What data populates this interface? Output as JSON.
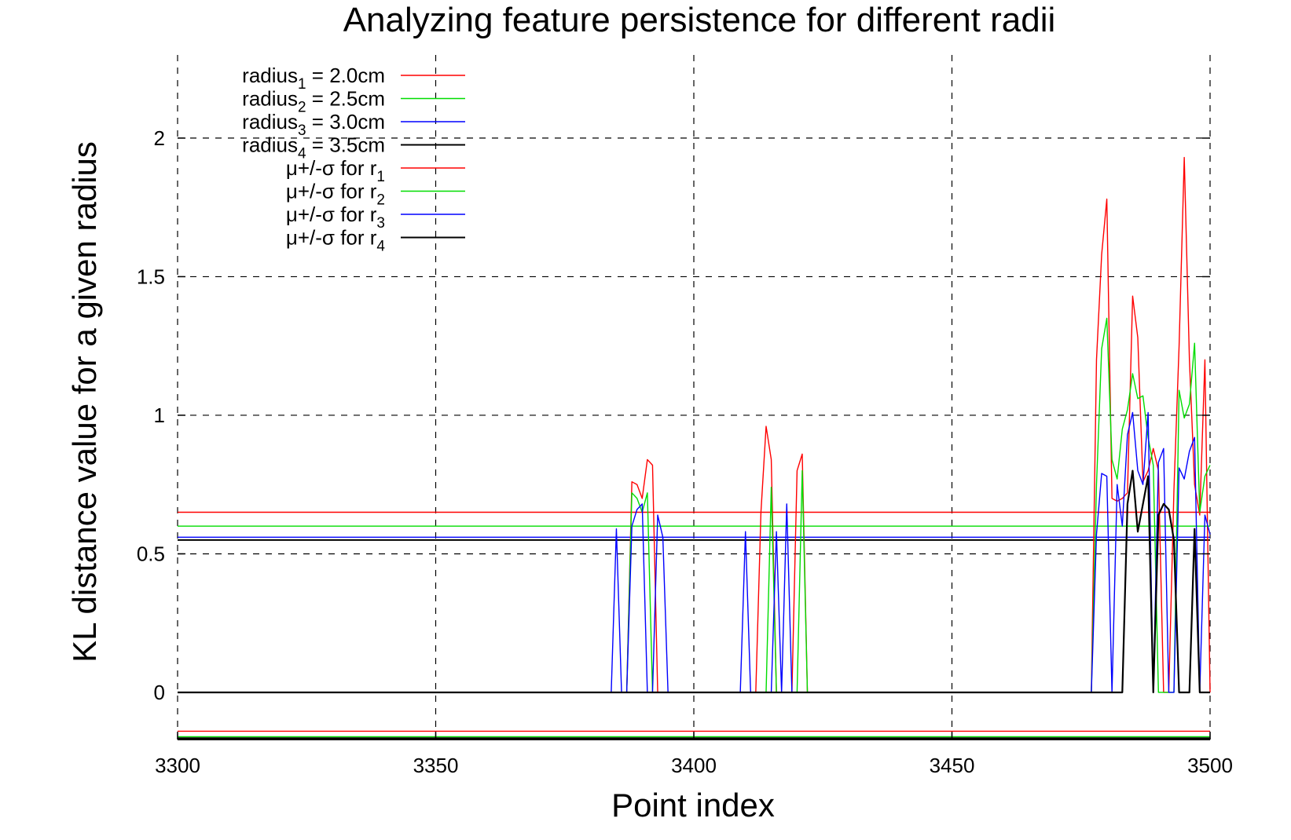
{
  "chart_data": {
    "type": "line",
    "title": "Analyzing feature persistence for different radii",
    "xlabel": "Point index",
    "ylabel": "KL distance value for a given radius",
    "xlim": [
      3300,
      3500
    ],
    "ylim": [
      -0.17,
      2.3
    ],
    "x_ticks": [
      3300,
      3350,
      3400,
      3450,
      3500
    ],
    "y_ticks": [
      0,
      0.5,
      1,
      1.5,
      2
    ],
    "x_tick_labels": [
      "3300",
      "3350",
      "3400",
      "3450",
      "3500"
    ],
    "y_tick_labels": [
      "0",
      "0.5",
      "1",
      "1.5",
      "2"
    ],
    "grid": true,
    "legend_position": "top-left",
    "legend": [
      {
        "prefix": "radius",
        "sub": "1",
        "suffix": " = 2.0cm",
        "color": "#ff0000"
      },
      {
        "prefix": "radius",
        "sub": "2",
        "suffix": " = 2.5cm",
        "color": "#00dd00"
      },
      {
        "prefix": "radius",
        "sub": "3",
        "suffix": " = 3.0cm",
        "color": "#0000ff"
      },
      {
        "prefix": "radius",
        "sub": "4",
        "suffix": " = 3.5cm",
        "color": "#000000"
      },
      {
        "prefix": "μ+/-σ for r",
        "sub": "1",
        "suffix": "",
        "color": "#ff0000"
      },
      {
        "prefix": "μ+/-σ for r",
        "sub": "2",
        "suffix": "",
        "color": "#00dd00"
      },
      {
        "prefix": "μ+/-σ for r",
        "sub": "3",
        "suffix": "",
        "color": "#0000ff"
      },
      {
        "prefix": "μ+/-σ for r",
        "sub": "4",
        "suffix": "",
        "color": "#000000"
      }
    ],
    "bands": [
      {
        "color": "#ff0000",
        "upper": 0.65,
        "lower": -0.14
      },
      {
        "color": "#00dd00",
        "upper": 0.6,
        "lower": -0.16
      },
      {
        "color": "#0000ff",
        "upper": 0.56,
        "lower": -0.165
      },
      {
        "color": "#000000",
        "upper": 0.55,
        "lower": -0.165
      }
    ],
    "series": [
      {
        "color": "#ff0000",
        "points": [
          [
            3300,
            0
          ],
          [
            3387,
            0
          ],
          [
            3388,
            0.76
          ],
          [
            3389,
            0.75
          ],
          [
            3390,
            0.7
          ],
          [
            3391,
            0.84
          ],
          [
            3392,
            0.82
          ],
          [
            3393,
            0
          ],
          [
            3412,
            0
          ],
          [
            3413,
            0.65
          ],
          [
            3414,
            0.96
          ],
          [
            3415,
            0.84
          ],
          [
            3416,
            0
          ],
          [
            3419,
            0
          ],
          [
            3420,
            0.8
          ],
          [
            3421,
            0.86
          ],
          [
            3422,
            0
          ],
          [
            3477,
            0
          ],
          [
            3478,
            1.2
          ],
          [
            3479,
            1.58
          ],
          [
            3480,
            1.78
          ],
          [
            3481,
            0.7
          ],
          [
            3482,
            0.69
          ],
          [
            3483,
            0.7
          ],
          [
            3484,
            0.72
          ],
          [
            3485,
            1.43
          ],
          [
            3486,
            1.28
          ],
          [
            3487,
            0.76
          ],
          [
            3488,
            0.8
          ],
          [
            3489,
            0.88
          ],
          [
            3490,
            0.8
          ],
          [
            3491,
            0
          ],
          [
            3492,
            0
          ],
          [
            3493,
            0.73
          ],
          [
            3494,
            1.25
          ],
          [
            3495,
            1.93
          ],
          [
            3496,
            1.2
          ],
          [
            3497,
            0.75
          ],
          [
            3498,
            0.64
          ],
          [
            3499,
            1.2
          ],
          [
            3500,
            0
          ]
        ]
      },
      {
        "color": "#00dd00",
        "points": [
          [
            3300,
            0
          ],
          [
            3387,
            0
          ],
          [
            3388,
            0.72
          ],
          [
            3389,
            0.7
          ],
          [
            3390,
            0.65
          ],
          [
            3391,
            0.72
          ],
          [
            3392,
            0
          ],
          [
            3414,
            0
          ],
          [
            3415,
            0.74
          ],
          [
            3416,
            0
          ],
          [
            3420,
            0
          ],
          [
            3421,
            0.8
          ],
          [
            3422,
            0
          ],
          [
            3477,
            0
          ],
          [
            3478,
            0.75
          ],
          [
            3479,
            1.24
          ],
          [
            3480,
            1.35
          ],
          [
            3481,
            0.84
          ],
          [
            3482,
            0.77
          ],
          [
            3483,
            0.95
          ],
          [
            3484,
            1.02
          ],
          [
            3485,
            1.15
          ],
          [
            3486,
            1.06
          ],
          [
            3487,
            1.07
          ],
          [
            3488,
            0.92
          ],
          [
            3489,
            0.82
          ],
          [
            3490,
            0
          ],
          [
            3493,
            0
          ],
          [
            3494,
            1.09
          ],
          [
            3495,
            0.99
          ],
          [
            3496,
            1.04
          ],
          [
            3497,
            1.26
          ],
          [
            3498,
            0.65
          ],
          [
            3499,
            0.78
          ],
          [
            3500,
            0.82
          ]
        ]
      },
      {
        "color": "#0000ff",
        "points": [
          [
            3300,
            0
          ],
          [
            3384,
            0
          ],
          [
            3385,
            0.59
          ],
          [
            3386,
            0
          ],
          [
            3387,
            0
          ],
          [
            3388,
            0.6
          ],
          [
            3389,
            0.66
          ],
          [
            3390,
            0.68
          ],
          [
            3391,
            0
          ],
          [
            3392,
            0
          ],
          [
            3393,
            0.64
          ],
          [
            3394,
            0.56
          ],
          [
            3395,
            0
          ],
          [
            3409,
            0
          ],
          [
            3410,
            0.58
          ],
          [
            3411,
            0
          ],
          [
            3415,
            0
          ],
          [
            3416,
            0.58
          ],
          [
            3417,
            0
          ],
          [
            3418,
            0.68
          ],
          [
            3419,
            0
          ],
          [
            3477,
            0
          ],
          [
            3478,
            0.57
          ],
          [
            3479,
            0.79
          ],
          [
            3480,
            0.78
          ],
          [
            3481,
            0
          ],
          [
            3482,
            0.75
          ],
          [
            3483,
            0.6
          ],
          [
            3484,
            0.93
          ],
          [
            3485,
            1.01
          ],
          [
            3486,
            0.8
          ],
          [
            3487,
            0.75
          ],
          [
            3488,
            1.01
          ],
          [
            3489,
            0
          ],
          [
            3490,
            0.83
          ],
          [
            3491,
            0.88
          ],
          [
            3492,
            0
          ],
          [
            3493,
            0
          ],
          [
            3494,
            0.81
          ],
          [
            3495,
            0.77
          ],
          [
            3496,
            0.87
          ],
          [
            3497,
            0.92
          ],
          [
            3498,
            0
          ],
          [
            3499,
            0.64
          ],
          [
            3500,
            0.57
          ]
        ]
      },
      {
        "color": "#000000",
        "points": [
          [
            3300,
            0
          ],
          [
            3483,
            0
          ],
          [
            3484,
            0.68
          ],
          [
            3485,
            0.8
          ],
          [
            3486,
            0.58
          ],
          [
            3487,
            0.68
          ],
          [
            3488,
            0.78
          ],
          [
            3489,
            0
          ],
          [
            3490,
            0.64
          ],
          [
            3491,
            0.68
          ],
          [
            3492,
            0.66
          ],
          [
            3493,
            0.55
          ],
          [
            3494,
            0
          ],
          [
            3496,
            0
          ],
          [
            3497,
            0.59
          ],
          [
            3498,
            0
          ],
          [
            3500,
            0
          ]
        ]
      }
    ]
  }
}
